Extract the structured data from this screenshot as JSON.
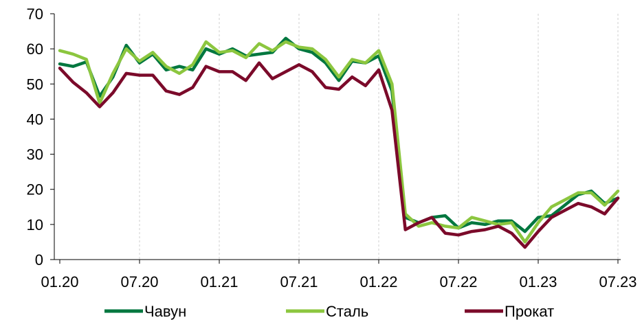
{
  "chart_data": {
    "type": "line",
    "title": "",
    "xlabel": "",
    "ylabel": "",
    "ylim": [
      0,
      70
    ],
    "y_ticks": [
      0,
      10,
      20,
      30,
      40,
      50,
      60,
      70
    ],
    "x_tick_labels": [
      "01.20",
      "07.20",
      "01.21",
      "07.21",
      "01.22",
      "07.22",
      "01.23",
      "07.23"
    ],
    "x": [
      "01.20",
      "02.20",
      "03.20",
      "04.20",
      "05.20",
      "06.20",
      "07.20",
      "08.20",
      "09.20",
      "10.20",
      "11.20",
      "12.20",
      "01.21",
      "02.21",
      "03.21",
      "04.21",
      "05.21",
      "06.21",
      "07.21",
      "08.21",
      "09.21",
      "10.21",
      "11.21",
      "12.21",
      "01.22",
      "02.22",
      "03.22",
      "04.22",
      "05.22",
      "06.22",
      "07.22",
      "08.22",
      "09.22",
      "10.22",
      "11.22",
      "12.22",
      "01.23",
      "02.23",
      "03.23",
      "04.23",
      "05.23",
      "06.23",
      "07.23"
    ],
    "grid": "vertical",
    "legend_position": "bottom",
    "series": [
      {
        "name": "Чавун",
        "color": "#00773F",
        "values": [
          55.7,
          55.0,
          56.3,
          46.5,
          52.0,
          61.0,
          56.0,
          58.5,
          54.0,
          55.0,
          54.0,
          60.0,
          58.5,
          60.0,
          58.0,
          58.5,
          59.0,
          63.0,
          60.0,
          59.0,
          56.0,
          51.0,
          56.5,
          56.0,
          58.0,
          48.0,
          12.0,
          10.5,
          12.0,
          12.5,
          9.0,
          10.5,
          10.0,
          11.0,
          11.0,
          8.0,
          12.0,
          12.5,
          15.5,
          18.5,
          19.5,
          16.0,
          17.5
        ]
      },
      {
        "name": "Сталь",
        "color": "#8CC63F",
        "values": [
          59.5,
          58.5,
          57.0,
          44.5,
          53.0,
          60.0,
          56.5,
          59.0,
          55.0,
          53.0,
          55.5,
          62.0,
          59.0,
          59.5,
          57.5,
          61.5,
          59.5,
          62.0,
          60.5,
          60.0,
          57.0,
          52.0,
          57.0,
          56.0,
          59.5,
          50.0,
          13.0,
          9.5,
          10.5,
          9.5,
          9.0,
          12.0,
          11.0,
          10.0,
          10.5,
          5.0,
          10.5,
          15.0,
          17.0,
          19.0,
          19.0,
          15.5,
          19.5
        ]
      },
      {
        "name": "Прокат",
        "color": "#7B0A2A",
        "values": [
          54.5,
          50.5,
          47.5,
          43.5,
          47.5,
          53.0,
          52.5,
          52.5,
          48.0,
          47.0,
          49.0,
          55.0,
          53.5,
          53.5,
          51.0,
          56.0,
          51.5,
          53.5,
          55.5,
          53.5,
          49.0,
          48.5,
          52.0,
          49.5,
          54.0,
          42.5,
          8.5,
          10.5,
          12.0,
          7.5,
          7.0,
          8.0,
          8.5,
          9.5,
          7.5,
          3.5,
          8.0,
          12.0,
          14.0,
          16.0,
          15.0,
          13.0,
          17.5
        ]
      }
    ]
  }
}
